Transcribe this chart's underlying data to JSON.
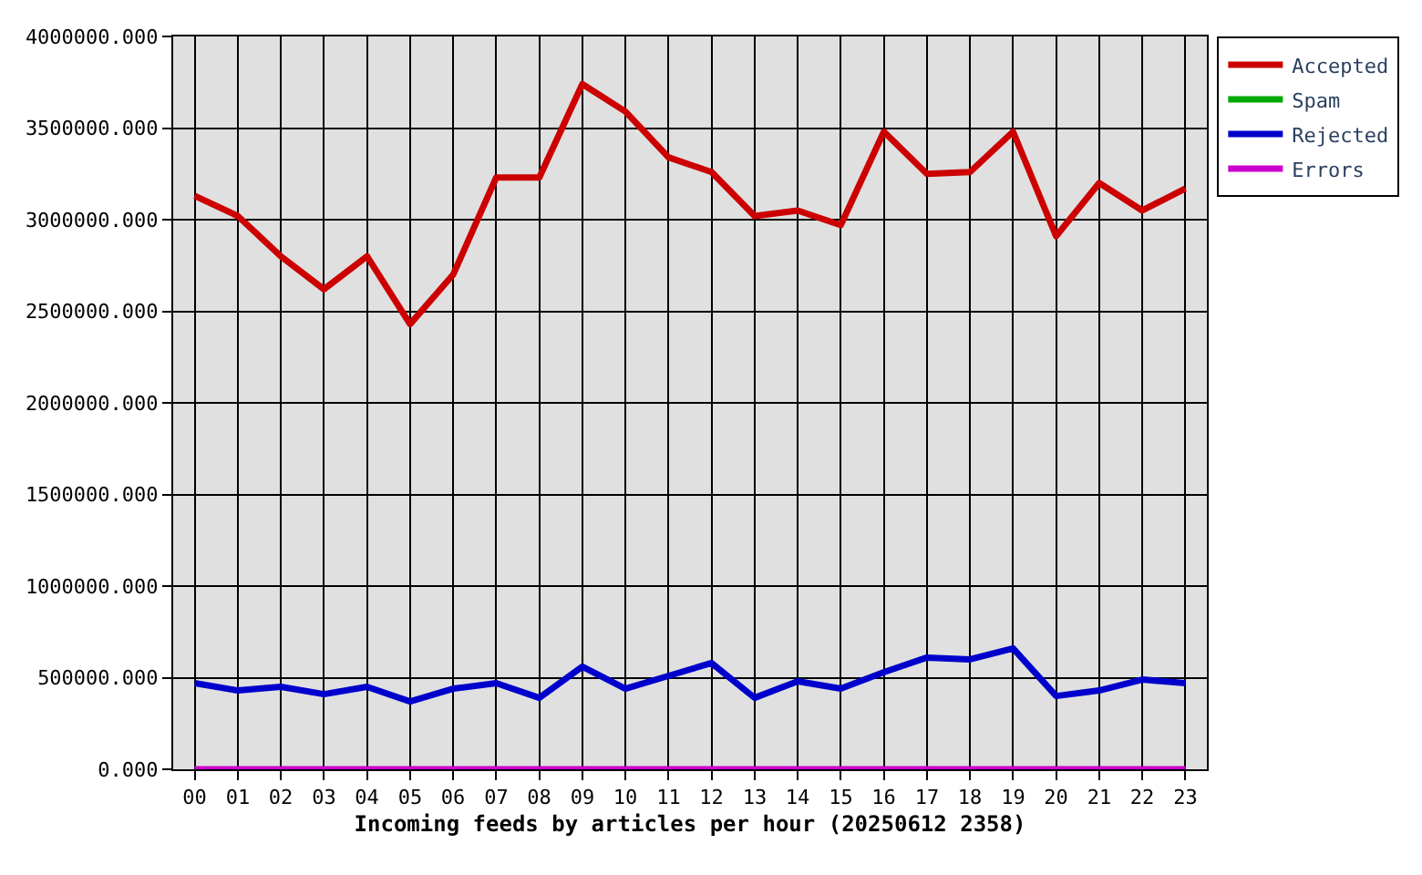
{
  "chart_data": {
    "type": "line",
    "xlabel": "Incoming feeds by articles per hour (20250612 2358)",
    "categories": [
      "00",
      "01",
      "02",
      "03",
      "04",
      "05",
      "06",
      "07",
      "08",
      "09",
      "10",
      "11",
      "12",
      "13",
      "14",
      "15",
      "16",
      "17",
      "18",
      "19",
      "20",
      "21",
      "22",
      "23"
    ],
    "series": [
      {
        "name": "Accepted",
        "color": "#cc0000",
        "values": [
          3130000,
          3020000,
          2800000,
          2620000,
          2800000,
          2430000,
          2700000,
          3230000,
          3230000,
          3740000,
          3590000,
          3340000,
          3260000,
          3020000,
          3050000,
          2970000,
          3480000,
          3250000,
          3260000,
          3480000,
          2910000,
          3200000,
          3050000,
          3170000
        ]
      },
      {
        "name": "Spam",
        "color": "#00aa00",
        "values": [
          null,
          null,
          null,
          null,
          null,
          null,
          null,
          null,
          null,
          null,
          null,
          null,
          null,
          null,
          null,
          null,
          null,
          null,
          null,
          null,
          null,
          null,
          null,
          null
        ]
      },
      {
        "name": "Rejected",
        "color": "#0000cc",
        "values": [
          470000,
          430000,
          450000,
          410000,
          450000,
          370000,
          440000,
          470000,
          390000,
          560000,
          440000,
          510000,
          580000,
          390000,
          480000,
          440000,
          530000,
          610000,
          600000,
          660000,
          400000,
          430000,
          490000,
          470000
        ]
      },
      {
        "name": "Errors",
        "color": "#cc00cc",
        "values": [
          0,
          0,
          0,
          0,
          0,
          0,
          0,
          0,
          0,
          0,
          0,
          0,
          0,
          0,
          0,
          0,
          0,
          0,
          0,
          0,
          0,
          0,
          0,
          0
        ]
      }
    ],
    "ylim": [
      0,
      4000000
    ],
    "yticks": [
      {
        "value": 0,
        "label": "0.000"
      },
      {
        "value": 500000,
        "label": "500000.000"
      },
      {
        "value": 1000000,
        "label": "1000000.000"
      },
      {
        "value": 1500000,
        "label": "1500000.000"
      },
      {
        "value": 2000000,
        "label": "2000000.000"
      },
      {
        "value": 2500000,
        "label": "2500000.000"
      },
      {
        "value": 3000000,
        "label": "3000000.000"
      },
      {
        "value": 3500000,
        "label": "3500000.000"
      },
      {
        "value": 4000000,
        "label": "4000000.000"
      }
    ],
    "grid": true,
    "legend": "top right",
    "line_style": "solid",
    "marker": "none"
  }
}
